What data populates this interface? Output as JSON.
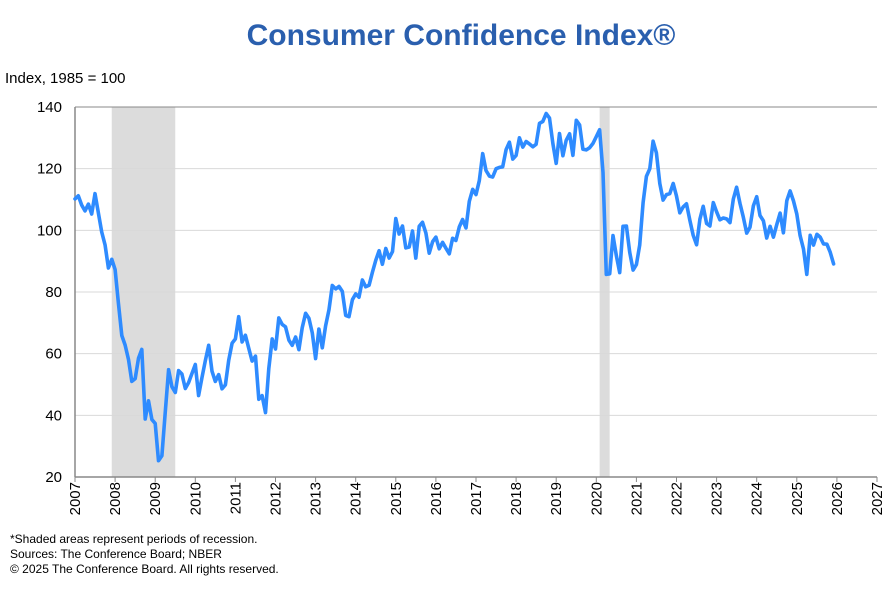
{
  "chart_data": {
    "type": "line",
    "title": "Consumer Confidence Index®",
    "ylabel": "Index, 1985 = 100",
    "xlabel": "",
    "ylim": [
      20,
      140
    ],
    "xlim": [
      2007,
      2027
    ],
    "yticks": [
      20,
      40,
      60,
      80,
      100,
      120,
      140
    ],
    "xticks": [
      "2007",
      "2008",
      "2009",
      "2010",
      "2011",
      "2012",
      "2013",
      "2014",
      "2015",
      "2016",
      "2017",
      "2018",
      "2019",
      "2020",
      "2021",
      "2022",
      "2023",
      "2024",
      "2025",
      "2026",
      "2027"
    ],
    "grid": "horizontal",
    "line_color": "#2e8bff",
    "recession_color": "#dcdcdc",
    "recessions": [
      [
        "2007-12",
        "2009-06"
      ],
      [
        "2020-02",
        "2020-04"
      ]
    ],
    "series": [
      {
        "start": "2007-01",
        "frequency": "monthly",
        "values": [
          110.2,
          111.2,
          108.2,
          106.3,
          108.5,
          105.3,
          111.9,
          105.6,
          99.5,
          95.2,
          87.8,
          90.6,
          87.3,
          76.4,
          65.9,
          62.8,
          58.1,
          51.0,
          51.9,
          58.5,
          61.4,
          38.8,
          44.7,
          38.6,
          37.4,
          25.3,
          26.9,
          40.8,
          54.8,
          49.3,
          47.4,
          54.5,
          53.4,
          48.7,
          50.6,
          53.6,
          56.5,
          46.4,
          52.3,
          57.7,
          62.7,
          54.3,
          51.0,
          53.2,
          48.6,
          49.9,
          57.8,
          63.4,
          64.8,
          72.0,
          63.8,
          66.0,
          61.7,
          57.6,
          59.2,
          45.2,
          46.4,
          40.9,
          55.2,
          64.8,
          61.5,
          71.6,
          69.5,
          68.7,
          64.4,
          62.7,
          65.4,
          61.3,
          68.4,
          73.1,
          71.5,
          66.7,
          58.4,
          68.0,
          61.9,
          69.0,
          74.3,
          82.1,
          81.0,
          81.8,
          80.2,
          72.4,
          72.0,
          77.5,
          79.4,
          78.3,
          83.9,
          81.7,
          82.2,
          86.4,
          90.3,
          93.4,
          89.0,
          94.1,
          91.0,
          93.1,
          103.8,
          98.8,
          101.4,
          94.3,
          94.6,
          99.8,
          91.0,
          101.3,
          102.6,
          99.1,
          92.6,
          96.3,
          97.8,
          94.0,
          96.1,
          94.2,
          92.4,
          97.4,
          96.7,
          101.1,
          103.5,
          100.8,
          109.4,
          113.3,
          111.6,
          116.1,
          124.9,
          119.4,
          117.6,
          117.3,
          120.0,
          120.4,
          120.6,
          126.2,
          128.6,
          123.1,
          124.3,
          130.0,
          127.0,
          128.8,
          128.0,
          127.1,
          127.9,
          134.7,
          135.3,
          137.9,
          136.4,
          128.1,
          121.7,
          131.4,
          124.2,
          129.2,
          131.3,
          124.3,
          135.7,
          134.2,
          126.3,
          126.1,
          126.8,
          128.2,
          130.4,
          132.6,
          118.8,
          85.7,
          85.9,
          98.3,
          91.7,
          86.3,
          101.3,
          101.4,
          92.9,
          87.1,
          88.9,
          95.2,
          109.0,
          117.5,
          120.0,
          128.9,
          125.1,
          115.2,
          109.8,
          111.6,
          111.9,
          115.2,
          111.1,
          105.7,
          107.6,
          108.6,
          103.2,
          98.4,
          95.3,
          103.6,
          107.8,
          102.2,
          101.4,
          109.0,
          106.0,
          103.4,
          104.0,
          103.7,
          102.5,
          110.1,
          114.0,
          108.7,
          104.3,
          99.1,
          101.0,
          108.0,
          110.9,
          104.8,
          103.1,
          97.5,
          101.3,
          97.8,
          101.9,
          105.6,
          99.2,
          109.6,
          112.8,
          109.5,
          105.3,
          98.3,
          93.9,
          85.7,
          98.4,
          95.2,
          98.7,
          97.8,
          95.6,
          95.5,
          92.9,
          89.1
        ]
      }
    ],
    "footnotes": [
      "*Shaded areas represent periods of recession.",
      "Sources:  The Conference Board;  NBER",
      "© 2025 The Conference Board. All rights reserved."
    ]
  }
}
